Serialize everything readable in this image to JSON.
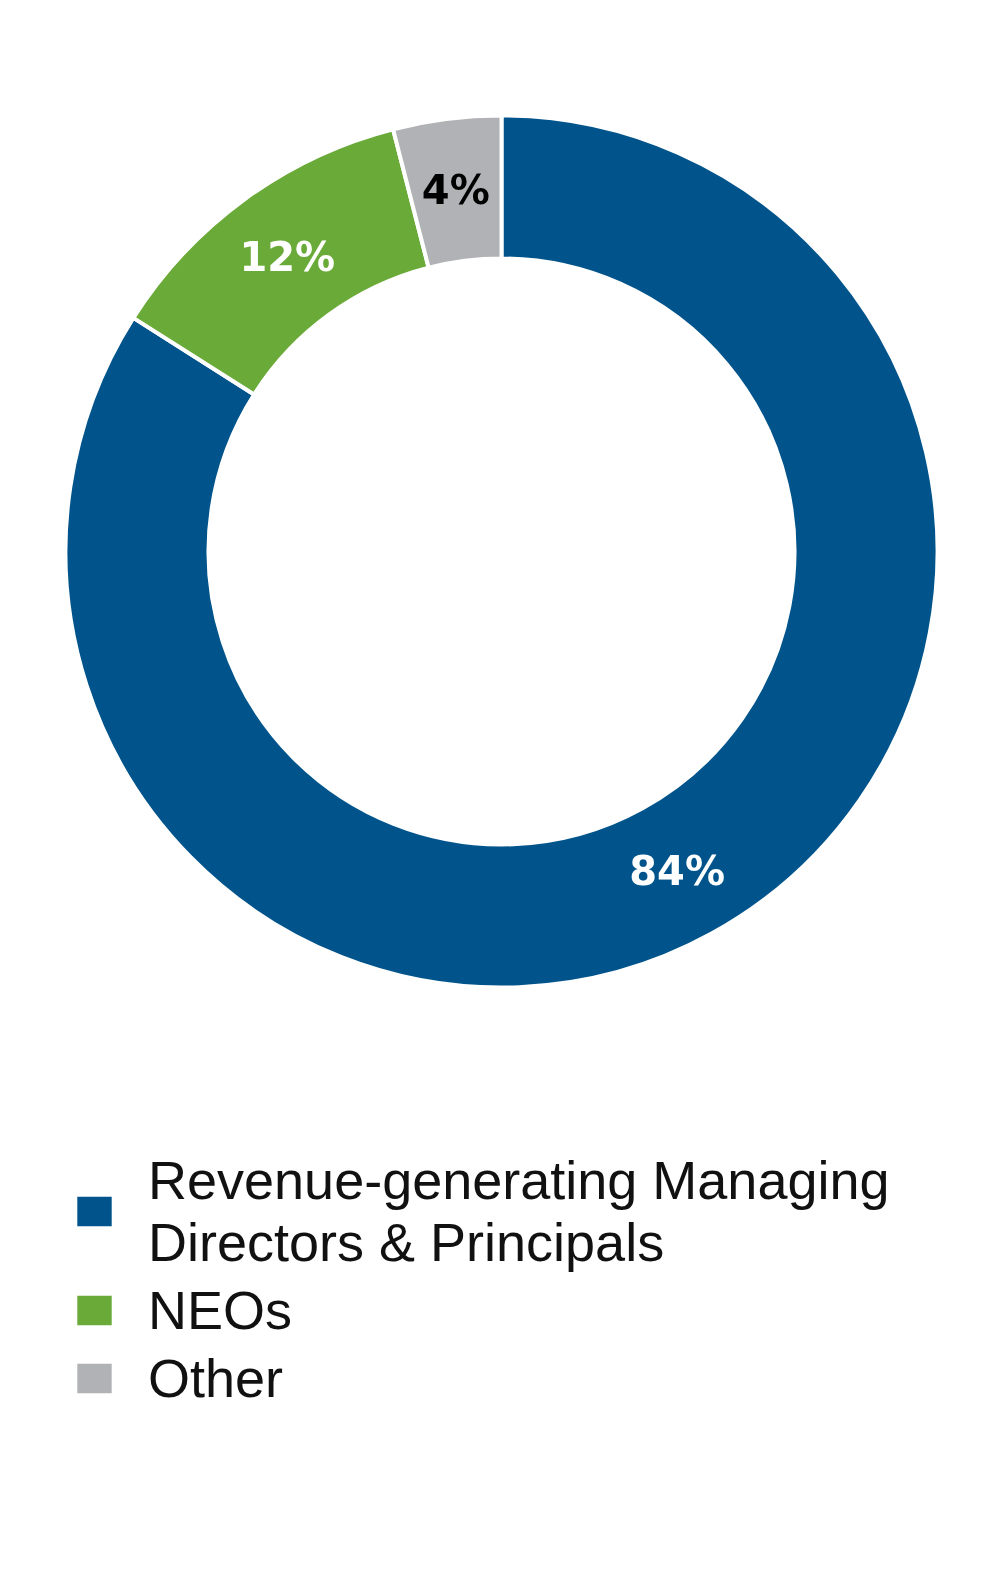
{
  "chart_data": {
    "type": "donut",
    "categories": [
      "Revenue-generating Managing Directors & Principals",
      "NEOs",
      "Other"
    ],
    "values": [
      84,
      12,
      4
    ],
    "colors": [
      "#01548b",
      "#6aaa38",
      "#b1b2b6"
    ],
    "value_labels": [
      "84%",
      "12%",
      "4%"
    ],
    "legend": "bottom"
  }
}
